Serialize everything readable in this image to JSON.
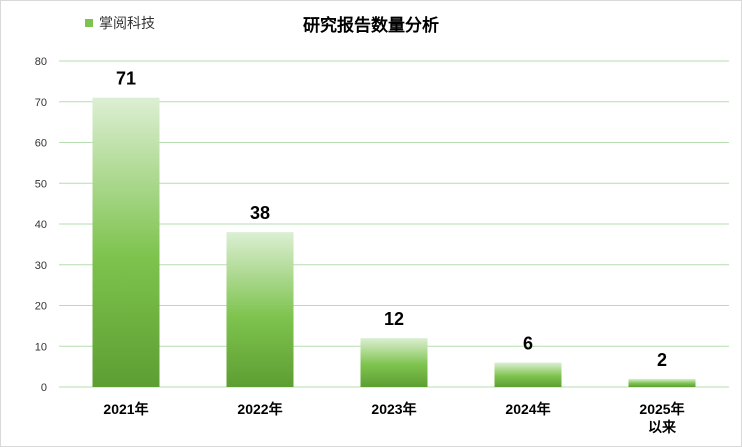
{
  "chart_data": {
    "type": "bar",
    "title": "研究报告数量分析",
    "categories": [
      "2021年",
      "2022年",
      "2023年",
      "2024年",
      "2025年\n以来"
    ],
    "series": [
      {
        "name": "掌阅科技",
        "values": [
          71,
          38,
          12,
          6,
          2
        ]
      }
    ],
    "ylim": [
      0,
      80
    ],
    "yticks": [
      0,
      10,
      20,
      30,
      40,
      50,
      60,
      70,
      80
    ],
    "grid": true,
    "legend": "top-left",
    "colors": {
      "bar_top": "#dcefd3",
      "bar_mid": "#7ec34e",
      "bar_bottom": "#5d9e32",
      "grid": "#b7ddb0"
    }
  }
}
